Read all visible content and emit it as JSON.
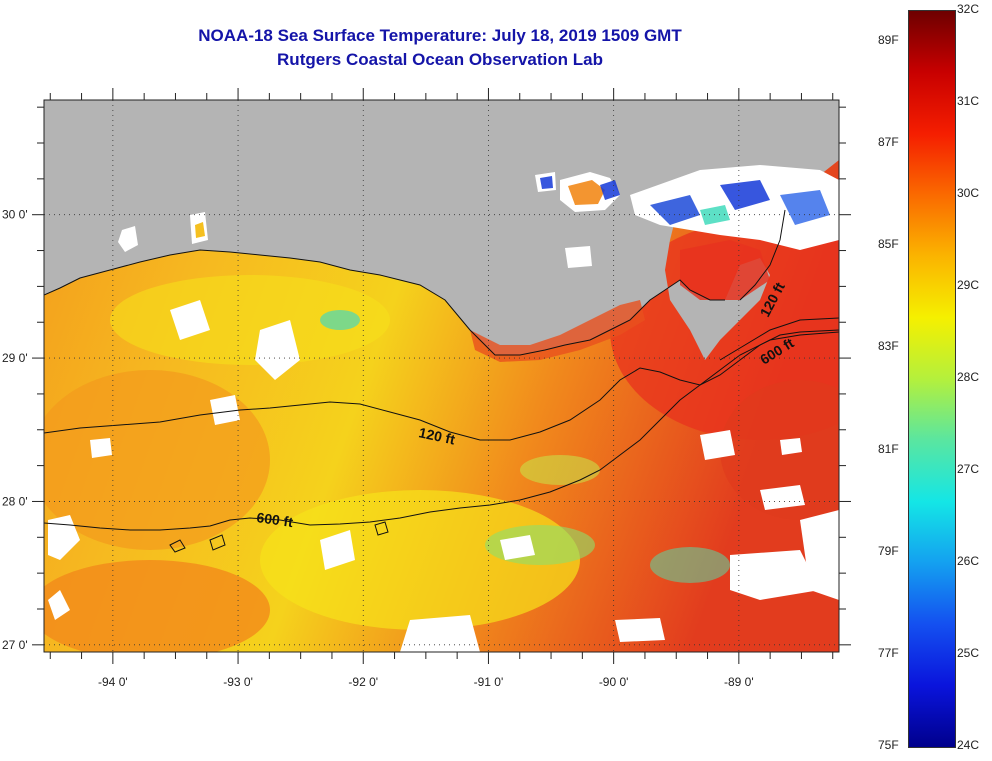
{
  "title_line1": "NOAA-18 Sea Surface Temperature:  July 18, 2019 1509 GMT",
  "title_line2": "Rutgers Coastal Ocean Observation Lab",
  "map": {
    "lon_range": [
      -94.55,
      -88.2
    ],
    "lat_range": [
      26.95,
      30.8
    ],
    "lon_ticks": [
      {
        "value": -94,
        "label": "-94 0'"
      },
      {
        "value": -93,
        "label": "-93 0'"
      },
      {
        "value": -92,
        "label": "-92 0'"
      },
      {
        "value": -91,
        "label": "-91 0'"
      },
      {
        "value": -90,
        "label": "-90 0'"
      },
      {
        "value": -89,
        "label": "-89 0'"
      }
    ],
    "lat_ticks": [
      {
        "value": 30,
        "label": "30 0'"
      },
      {
        "value": 29,
        "label": "29 0'"
      },
      {
        "value": 28,
        "label": "28 0'"
      },
      {
        "value": 27,
        "label": "27 0'"
      }
    ],
    "contours": [
      {
        "label": "120 ft"
      },
      {
        "label": "600 ft"
      },
      {
        "label": "120 ft"
      },
      {
        "label": "600 ft"
      }
    ],
    "colors": {
      "land": "#b4b4b4",
      "cloud": "#ffffff",
      "warm_red": "#e8321e",
      "orange": "#f28a1a",
      "yellow": "#f7dc1a",
      "cyan": "#34d8b8",
      "blue": "#1438d8"
    }
  },
  "colorbar": {
    "celsius": [
      "32C",
      "31C",
      "30C",
      "29C",
      "28C",
      "27C",
      "26C",
      "25C",
      "24C"
    ],
    "fahrenheit": [
      "89F",
      "87F",
      "85F",
      "83F",
      "81F",
      "79F",
      "77F",
      "75F"
    ],
    "gradient": [
      "#6e0000",
      "#c80000",
      "#f51e00",
      "#fa6a00",
      "#fbb400",
      "#f5f000",
      "#b4f03c",
      "#5ae6a0",
      "#14e6e6",
      "#14a0f0",
      "#1450f0",
      "#0a14dc",
      "#00008c"
    ]
  }
}
